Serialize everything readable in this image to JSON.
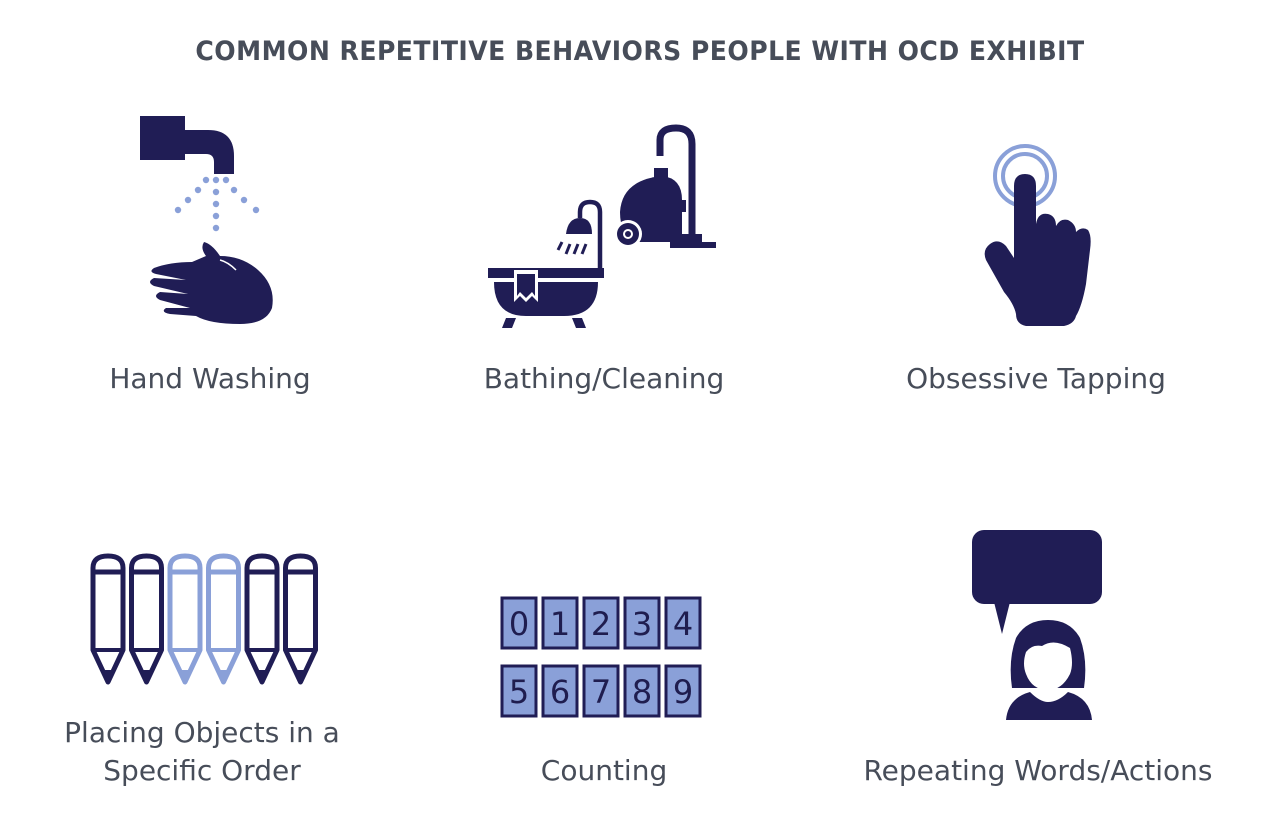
{
  "title": "COMMON REPETITIVE BEHAVIORS PEOPLE WITH OCD EXHIBIT",
  "colors": {
    "dark": "#201d55",
    "light": "#8aa0d8",
    "text": "#474d59"
  },
  "items": [
    {
      "label": "Hand Washing",
      "icon": "faucet-hand-icon"
    },
    {
      "label": "Bathing/Cleaning",
      "icon": "bathtub-vacuum-icon"
    },
    {
      "label": "Obsessive Tapping",
      "icon": "tapping-finger-icon"
    },
    {
      "label_lines": [
        "Placing Objects in a",
        "Specific Order"
      ],
      "icon": "pencils-icon"
    },
    {
      "label": "Counting",
      "icon": "counting-digits-icon"
    },
    {
      "label": "Repeating Words/Actions",
      "icon": "speech-person-icon"
    }
  ],
  "counting_digits": [
    "0",
    "1",
    "2",
    "3",
    "4",
    "5",
    "6",
    "7",
    "8",
    "9"
  ]
}
